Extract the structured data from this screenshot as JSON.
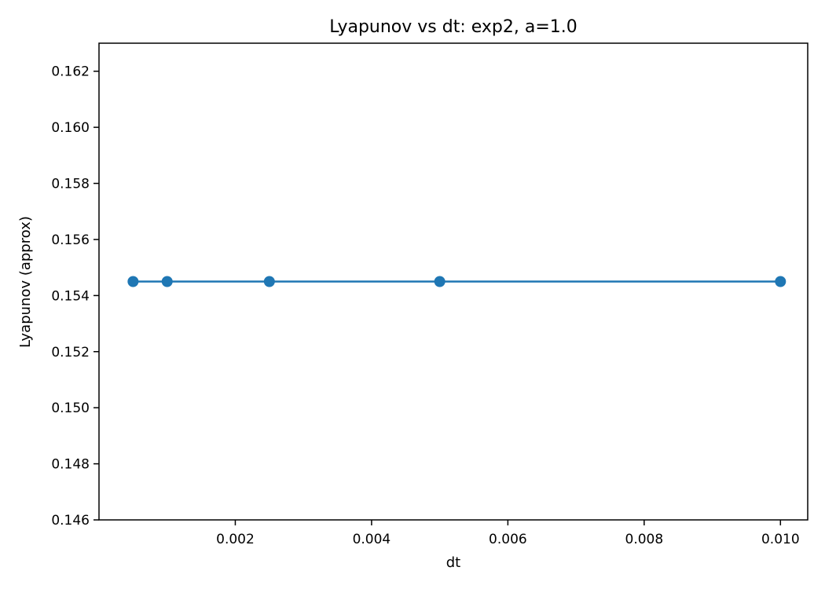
{
  "chart_data": {
    "type": "line",
    "title": "Lyapunov vs dt: exp2, a=1.0",
    "xlabel": "dt",
    "ylabel": "Lyapunov (approx)",
    "xlim": [
      0.0,
      0.0104
    ],
    "ylim": [
      0.146,
      0.163
    ],
    "xticks": [
      0.002,
      0.004,
      0.006,
      0.008,
      0.01
    ],
    "xtick_labels": [
      "0.002",
      "0.004",
      "0.006",
      "0.008",
      "0.010"
    ],
    "yticks": [
      0.146,
      0.148,
      0.15,
      0.152,
      0.154,
      0.156,
      0.158,
      0.16,
      0.162
    ],
    "ytick_labels": [
      "0.146",
      "0.148",
      "0.150",
      "0.152",
      "0.154",
      "0.156",
      "0.158",
      "0.160",
      "0.162"
    ],
    "grid": false,
    "marker": "circle",
    "series": [
      {
        "color": "#1f77b4",
        "x": [
          0.0005,
          0.001,
          0.0025,
          0.005,
          0.01
        ],
        "y": [
          0.1545,
          0.1545,
          0.1545,
          0.1545,
          0.1545
        ]
      }
    ]
  }
}
